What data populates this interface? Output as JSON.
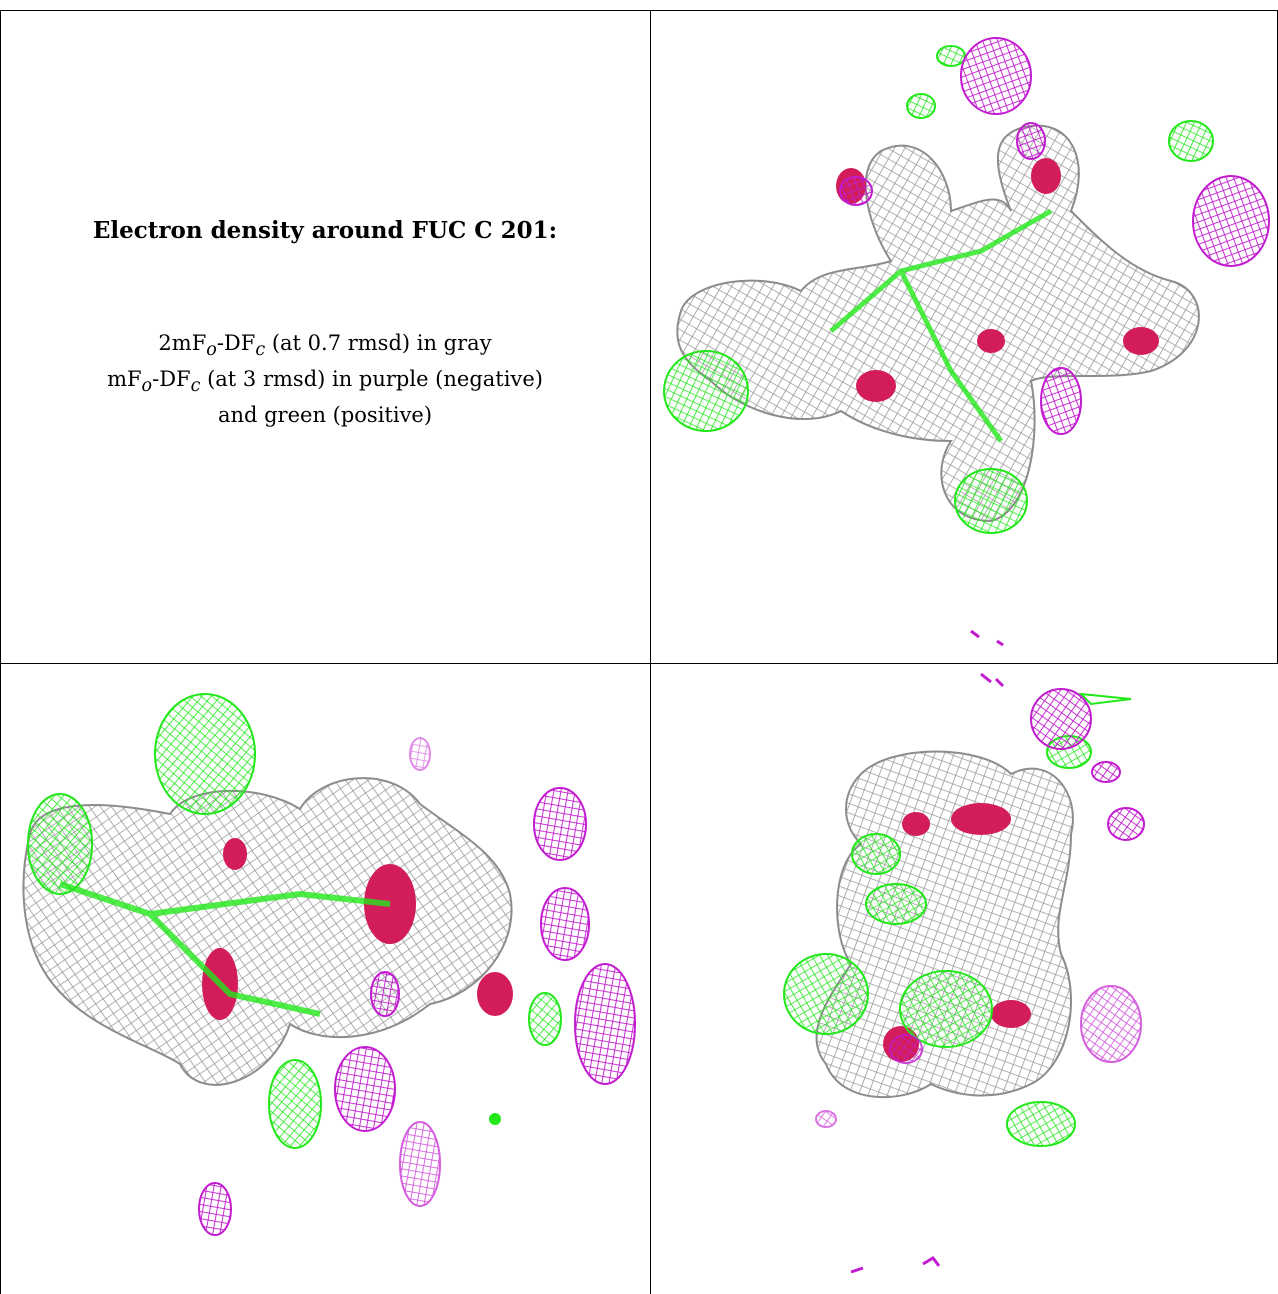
{
  "legend": {
    "title": "Electron density around FUC C 201:",
    "line1_a": "2mF",
    "line1_sub1": "o",
    "line1_b": "-DF",
    "line1_sub2": "c",
    "line1_c": " (at 0.7 rmsd) in gray",
    "line2_a": "mF",
    "line2_sub1": "o",
    "line2_b": "-DF",
    "line2_sub2": "c",
    "line2_c": " (at 3 rmsd) in purple (negative)",
    "line3": "and green (positive)"
  },
  "colors": {
    "gray_mesh": "#a8a8a8",
    "negative": "#c21bd0",
    "positive": "#22e81a",
    "atom_core": "#d21d5a"
  }
}
